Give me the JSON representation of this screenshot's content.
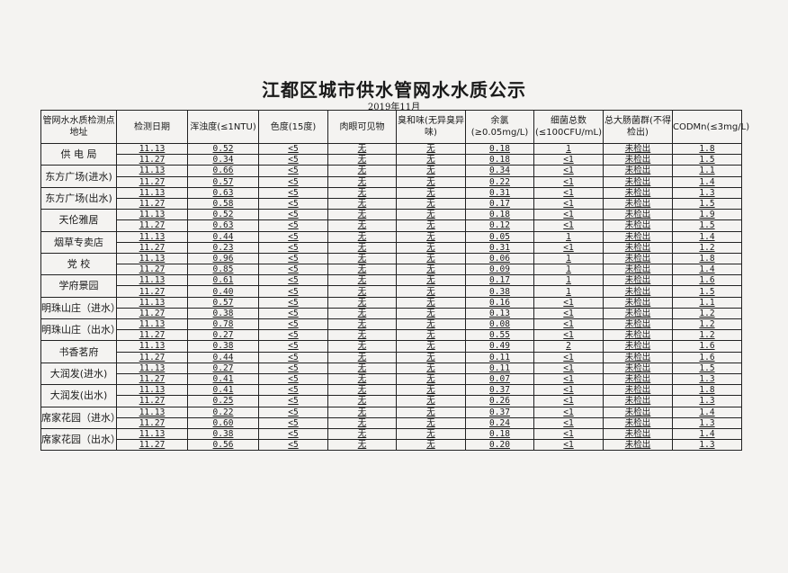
{
  "title": "江都区城市供水管网水水质公示",
  "subtitle": "2019年11月",
  "columns": [
    "管网水水质检测点地址",
    "检测日期",
    "浑浊度(≤1NTU)",
    "色度(15度)",
    "肉眼可见物",
    "臭和味(无异臭异味)",
    "余氯(≥0.05mg/L)",
    "细菌总数(≤100CFU/mL)",
    "总大肠菌群(不得检出)",
    "CODMn(≤3mg/L)"
  ],
  "sites": [
    {
      "name": "供 电 局",
      "rows": [
        [
          "11.13",
          "0.52",
          "<5",
          "无",
          "无",
          "0.18",
          "1",
          "未检出",
          "1.8"
        ],
        [
          "11.27",
          "0.34",
          "<5",
          "无",
          "无",
          "0.18",
          "<1",
          "未检出",
          "1.5"
        ]
      ]
    },
    {
      "name": "东方广场(进水)",
      "rows": [
        [
          "11.13",
          "0.66",
          "<5",
          "无",
          "无",
          "0.34",
          "<1",
          "未检出",
          "1.1"
        ],
        [
          "11.27",
          "0.57",
          "<5",
          "无",
          "无",
          "0.22",
          "<1",
          "未检出",
          "1.4"
        ]
      ]
    },
    {
      "name": "东方广场(出水)",
      "rows": [
        [
          "11.13",
          "0.63",
          "<5",
          "无",
          "无",
          "0.31",
          "<1",
          "未检出",
          "1.3"
        ],
        [
          "11.27",
          "0.58",
          "<5",
          "无",
          "无",
          "0.17",
          "<1",
          "未检出",
          "1.5"
        ]
      ]
    },
    {
      "name": "天伦雅居",
      "rows": [
        [
          "11.13",
          "0.52",
          "<5",
          "无",
          "无",
          "0.18",
          "<1",
          "未检出",
          "1.9"
        ],
        [
          "11.27",
          "0.63",
          "<5",
          "无",
          "无",
          "0.12",
          "<1",
          "未检出",
          "1.5"
        ]
      ]
    },
    {
      "name": "烟草专卖店",
      "rows": [
        [
          "11.13",
          "0.44",
          "<5",
          "无",
          "无",
          "0.05",
          "1",
          "未检出",
          "1.4"
        ],
        [
          "11.27",
          "0.23",
          "<5",
          "无",
          "无",
          "0.31",
          "<1",
          "未检出",
          "1.2"
        ]
      ]
    },
    {
      "name": "党 校",
      "rows": [
        [
          "11.13",
          "0.96",
          "<5",
          "无",
          "无",
          "0.06",
          "1",
          "未检出",
          "1.8"
        ],
        [
          "11.27",
          "0.85",
          "<5",
          "无",
          "无",
          "0.09",
          "1",
          "未检出",
          "1.4"
        ]
      ]
    },
    {
      "name": "学府景园",
      "rows": [
        [
          "11.13",
          "0.61",
          "<5",
          "无",
          "无",
          "0.17",
          "1",
          "未检出",
          "1.6"
        ],
        [
          "11.27",
          "0.40",
          "<5",
          "无",
          "无",
          "0.38",
          "1",
          "未检出",
          "1.5"
        ]
      ]
    },
    {
      "name": "明珠山庄（进水）",
      "rows": [
        [
          "11.13",
          "0.57",
          "<5",
          "无",
          "无",
          "0.16",
          "<1",
          "未检出",
          "1.1"
        ],
        [
          "11.27",
          "0.38",
          "<5",
          "无",
          "无",
          "0.13",
          "<1",
          "未检出",
          "1.2"
        ]
      ]
    },
    {
      "name": "明珠山庄（出水）",
      "rows": [
        [
          "11.13",
          "0.78",
          "<5",
          "无",
          "无",
          "0.08",
          "<1",
          "未检出",
          "1.2"
        ],
        [
          "11.27",
          "0.27",
          "<5",
          "无",
          "无",
          "0.55",
          "<1",
          "未检出",
          "1.2"
        ]
      ]
    },
    {
      "name": "书香茗府",
      "rows": [
        [
          "11.13",
          "0.38",
          "<5",
          "无",
          "无",
          "0.49",
          "2",
          "未检出",
          "1.6"
        ],
        [
          "11.27",
          "0.44",
          "<5",
          "无",
          "无",
          "0.11",
          "<1",
          "未检出",
          "1.6"
        ]
      ]
    },
    {
      "name": "大润发(进水)",
      "rows": [
        [
          "11.13",
          "0.27",
          "<5",
          "无",
          "无",
          "0.11",
          "<1",
          "未检出",
          "1.5"
        ],
        [
          "11.27",
          "0.41",
          "<5",
          "无",
          "无",
          "0.07",
          "<1",
          "未检出",
          "1.3"
        ]
      ]
    },
    {
      "name": "大润发(出水)",
      "rows": [
        [
          "11.13",
          "0.41",
          "<5",
          "无",
          "无",
          "0.37",
          "<1",
          "未检出",
          "1.8"
        ],
        [
          "11.27",
          "0.25",
          "<5",
          "无",
          "无",
          "0.26",
          "<1",
          "未检出",
          "1.3"
        ]
      ]
    },
    {
      "name": "席家花园（进水）",
      "rows": [
        [
          "11.13",
          "0.22",
          "<5",
          "无",
          "无",
          "0.37",
          "<1",
          "未检出",
          "1.4"
        ],
        [
          "11.27",
          "0.60",
          "<5",
          "无",
          "无",
          "0.24",
          "<1",
          "未检出",
          "1.3"
        ]
      ]
    },
    {
      "name": "席家花园（出水）",
      "rows": [
        [
          "11.13",
          "0.38",
          "<5",
          "无",
          "无",
          "0.18",
          "<1",
          "未检出",
          "1.4"
        ],
        [
          "11.27",
          "0.56",
          "<5",
          "无",
          "无",
          "0.20",
          "<1",
          "未检出",
          "1.3"
        ]
      ]
    }
  ]
}
